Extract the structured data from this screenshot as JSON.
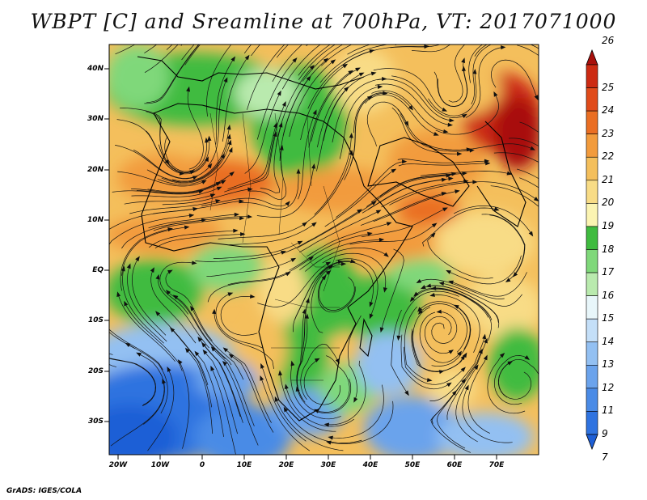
{
  "title": "WBPT [C] and Sreamline at 700hPa, VT: 2017071000",
  "footer": "GrADS: IGES/COLA",
  "lat_labels": [
    "40N",
    "30N",
    "20N",
    "10N",
    "EQ",
    "10S",
    "20S",
    "30S"
  ],
  "lon_labels": [
    "20W",
    "10W",
    "0",
    "10E",
    "20E",
    "30E",
    "40E",
    "50E",
    "60E",
    "70E"
  ],
  "colorbar": {
    "levels": [
      "7",
      "9",
      "11",
      "12",
      "13",
      "14",
      "15",
      "16",
      "17",
      "18",
      "19",
      "20",
      "21",
      "22",
      "23",
      "24",
      "25",
      "26"
    ],
    "colors": [
      "#1e5fd6",
      "#2f73e0",
      "#4a8be6",
      "#6ba3ec",
      "#93c0f2",
      "#c4dff8",
      "#e8f6fa",
      "#b9eaae",
      "#7fd87a",
      "#3fbb3f",
      "#fbf4b2",
      "#f8dc86",
      "#f4bf5c",
      "#f29b3c",
      "#ea6e23",
      "#e04b1a",
      "#cc2a12",
      "#a8100c"
    ]
  }
}
